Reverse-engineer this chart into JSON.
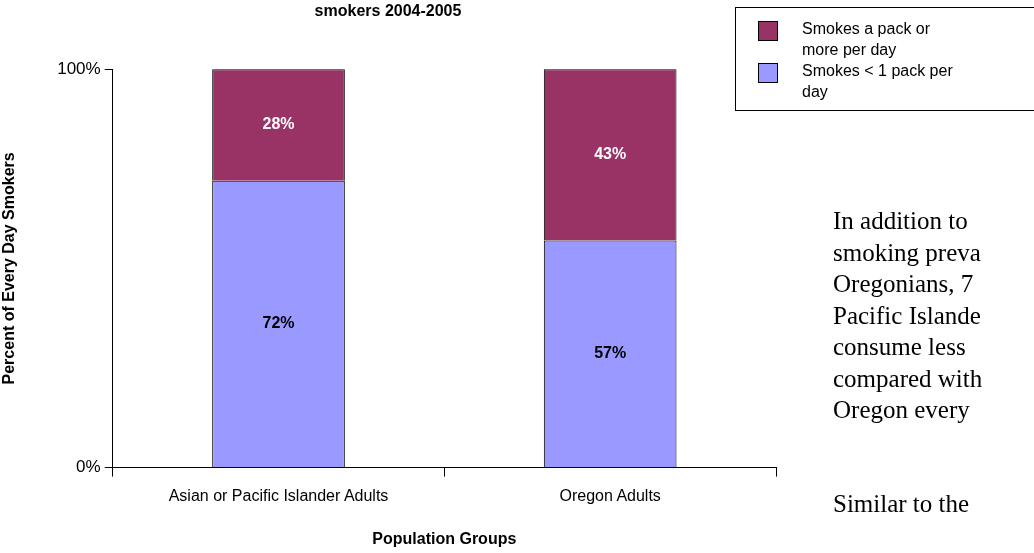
{
  "chart_data": {
    "type": "bar",
    "title": "smokers 2004-2005",
    "xlabel": "Population Groups",
    "ylabel": "Percent of Every Day Smokers",
    "categories": [
      "Asian or Pacific Islander Adults",
      "Oregon Adults"
    ],
    "stacked": true,
    "ylim": [
      0,
      100
    ],
    "yticks": [
      {
        "value": 0,
        "label": "0%"
      },
      {
        "value": 100,
        "label": "100%"
      }
    ],
    "grid": false,
    "legend": "top right",
    "series": [
      {
        "name": "Smokes < 1 pack per day",
        "color": "#9999ff",
        "values": [
          72,
          57
        ],
        "value_labels": [
          "72%",
          "57%"
        ]
      },
      {
        "name": "Smokes a pack or more per day",
        "color": "#993366",
        "values": [
          28,
          43
        ],
        "value_labels": [
          "28%",
          "43%"
        ]
      }
    ],
    "annotations": [
      "In addition to",
      "smoking preva",
      "Oregonians, 7",
      "Pacific Islande",
      "consume less",
      "compared with",
      "Oregon every",
      "Similar to the"
    ]
  }
}
